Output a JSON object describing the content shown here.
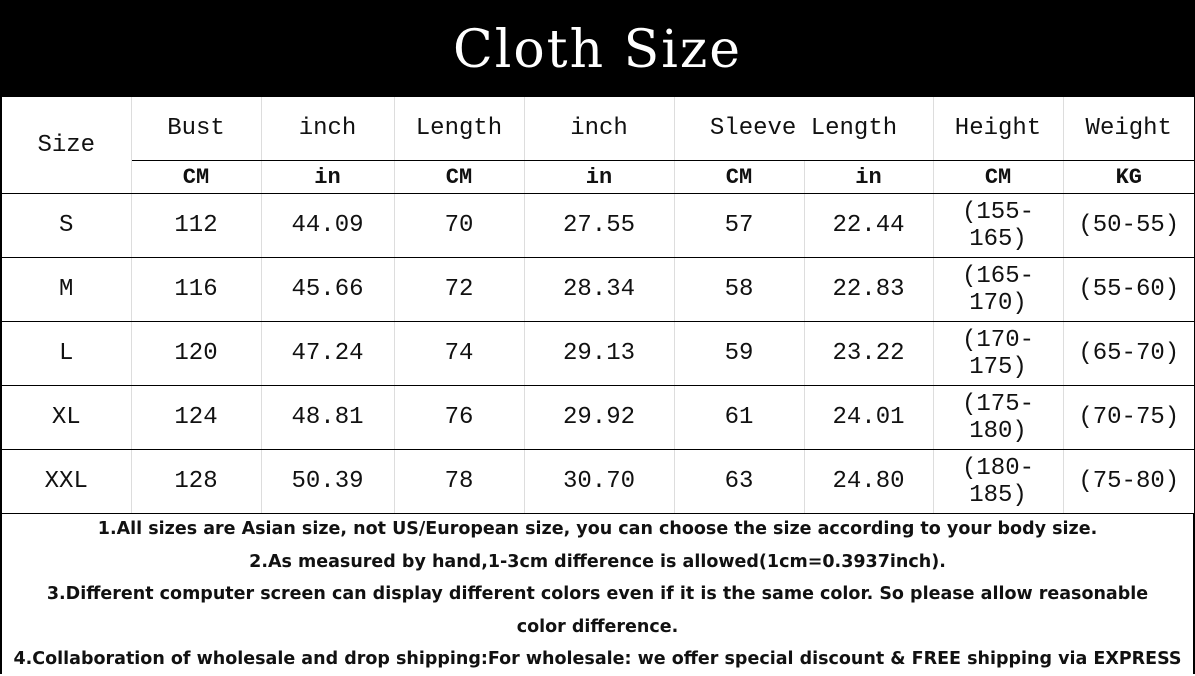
{
  "title": "Cloth Size",
  "headers": {
    "size": "Size",
    "top": [
      "Bust",
      "inch",
      "Length",
      "inch",
      "Sleeve Length",
      "Height",
      "Weight"
    ],
    "units": [
      "CM",
      "in",
      "CM",
      "in",
      "CM",
      "in",
      "CM",
      "KG"
    ]
  },
  "rows": [
    [
      "S",
      "112",
      "44.09",
      "70",
      "27.55",
      "57",
      "22.44",
      "(155-165)",
      "(50-55)"
    ],
    [
      "M",
      "116",
      "45.66",
      "72",
      "28.34",
      "58",
      "22.83",
      "(165-170)",
      "(55-60)"
    ],
    [
      "L",
      "120",
      "47.24",
      "74",
      "29.13",
      "59",
      "23.22",
      "(170-175)",
      "(65-70)"
    ],
    [
      "XL",
      "124",
      "48.81",
      "76",
      "29.92",
      "61",
      "24.01",
      "(175-180)",
      "(70-75)"
    ],
    [
      "XXL",
      "128",
      "50.39",
      "78",
      "30.70",
      "63",
      "24.80",
      "(180-185)",
      "(75-80)"
    ]
  ],
  "notes": [
    "1.All sizes are Asian size, not US/European size, you can choose the size according to your body size.",
    "2.As measured by hand,1-3cm difference is allowed(1cm=0.3937inch).",
    "3.Different computer screen can display different colors even if it is the same color. So please allow reasonable color difference.",
    "4.Collaboration of wholesale and drop shipping:For wholesale: we offer  special discount & FREE shipping via EXPRESS"
  ]
}
